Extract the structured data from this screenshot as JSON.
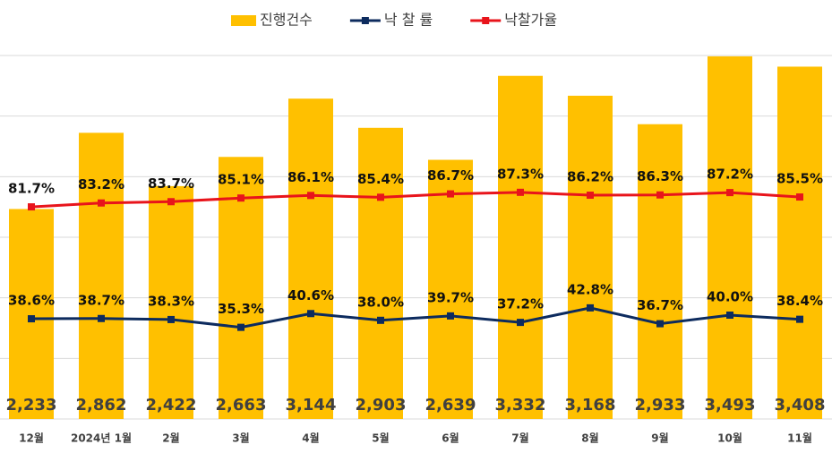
{
  "chart_data": {
    "type": "combo",
    "categories": [
      "12월",
      "2024년 1월",
      "2월",
      "3월",
      "4월",
      "5월",
      "6월",
      "7월",
      "8월",
      "9월",
      "10월",
      "11월"
    ],
    "series": [
      {
        "name": "진행건수",
        "type": "bar",
        "color": "#FFC000",
        "values": [
          2233,
          2862,
          2422,
          2663,
          3144,
          2903,
          2639,
          3332,
          3168,
          2933,
          3493,
          3408
        ],
        "value_labels": [
          "2,233",
          "2,862",
          "2,422",
          "2,663",
          "3,144",
          "2,903",
          "2,639",
          "3,332",
          "3,168",
          "2,933",
          "3,493",
          "3,408"
        ]
      },
      {
        "name": "낙 찰 률",
        "type": "line",
        "axis": "y2",
        "color": "#0D2B5E",
        "values": [
          38.6,
          38.7,
          38.3,
          35.3,
          40.6,
          38.0,
          39.7,
          37.2,
          42.8,
          36.7,
          40.0,
          38.4
        ],
        "value_labels": [
          "38.6%",
          "38.7%",
          "38.3%",
          "35.3%",
          "40.6%",
          "38.0%",
          "39.7%",
          "37.2%",
          "42.8%",
          "36.7%",
          "40.0%",
          "38.4%"
        ]
      },
      {
        "name": "낙찰가율",
        "type": "line",
        "axis": "y2",
        "color": "#E8141B",
        "values": [
          81.7,
          83.2,
          83.7,
          85.1,
          86.1,
          85.4,
          86.7,
          87.3,
          86.2,
          86.3,
          87.2,
          85.5
        ],
        "value_labels": [
          "81.7%",
          "83.2%",
          "83.7%",
          "85.1%",
          "86.1%",
          "85.4%",
          "86.7%",
          "87.3%",
          "86.2%",
          "86.3%",
          "87.2%",
          "85.5%"
        ]
      }
    ],
    "ylim": [
      500,
      3500
    ],
    "yticks": [
      500,
      1000,
      1500,
      2000,
      2500,
      3000,
      3500
    ],
    "y2lim": [
      0,
      140
    ],
    "grid": true
  }
}
